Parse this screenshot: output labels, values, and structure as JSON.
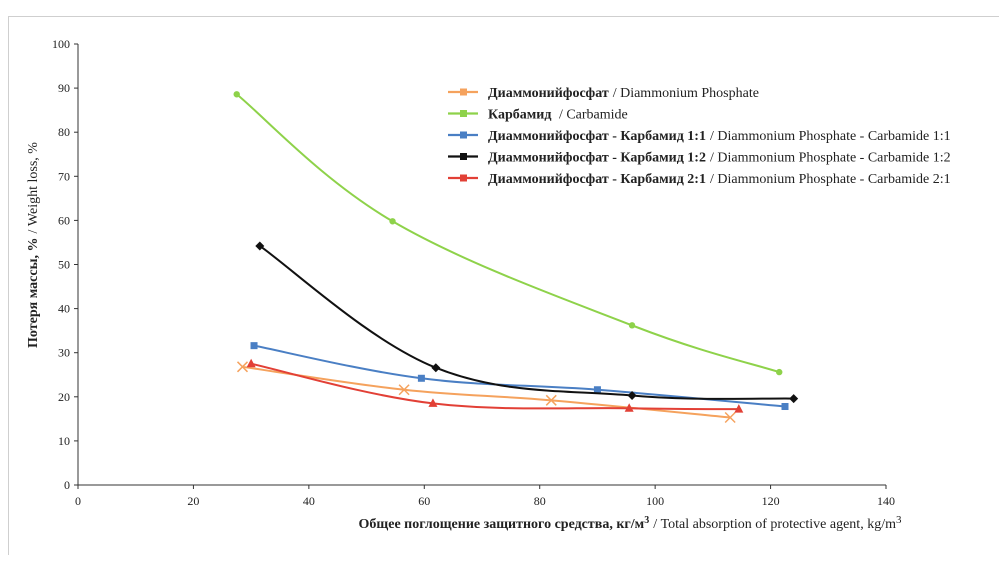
{
  "chart_data": {
    "type": "line",
    "xlabel_ru": "Общее поглощение защитного средства, кг/м",
    "xlabel_ru_sup": "3",
    "xlabel_en": "/ Total absorption of protective agent, kg/m",
    "xlabel_en_sup": "3",
    "ylabel_ru": "Потеря массы, %",
    "ylabel_en": "/ Weight loss, %",
    "xlim": [
      0,
      140
    ],
    "ylim": [
      0,
      100
    ],
    "xticks": [
      "0",
      "20",
      "40",
      "60",
      "80",
      "100",
      "120",
      "140"
    ],
    "yticks": [
      "0",
      "10",
      "20",
      "30",
      "40",
      "50",
      "60",
      "70",
      "80",
      "90",
      "100"
    ],
    "grid": false,
    "legend_position": "top-right",
    "series": [
      {
        "name_ru": "Диаммонийфосфат",
        "name_en": "/ Diammonium Phosphate",
        "color": "#f5a25d",
        "marker": "x",
        "x": [
          28.5,
          56.5,
          82,
          113
        ],
        "y": [
          26.8,
          21.6,
          19.2,
          15.3
        ]
      },
      {
        "name_ru": "Карбамид",
        "name_en": " / Carbamide",
        "color": "#8ed24a",
        "marker": "circle",
        "x": [
          27.5,
          54.5,
          96,
          121.5
        ],
        "y": [
          88.6,
          59.8,
          36.2,
          25.6
        ]
      },
      {
        "name_ru": "Диаммонийфосфат - Карбамид 1:1",
        "name_en": "/ Diammonium Phosphate - Carbamide 1:1",
        "color": "#4a7fc4",
        "marker": "square",
        "x": [
          30.5,
          59.5,
          90,
          122.5
        ],
        "y": [
          31.6,
          24.2,
          21.6,
          17.8
        ]
      },
      {
        "name_ru": "Диаммонийфосфат - Карбамид 1:2",
        "name_en": "/ Diammonium Phosphate - Carbamide 1:2",
        "color": "#111111",
        "marker": "diamond",
        "x": [
          31.5,
          62,
          96,
          124
        ],
        "y": [
          54.2,
          26.6,
          20.3,
          19.6
        ]
      },
      {
        "name_ru": "Диаммонийфосфат - Карбамид 2:1",
        "name_en": "/ Diammonium Phosphate - Carbamide 2:1",
        "color": "#e24036",
        "marker": "triangle",
        "x": [
          30,
          61.5,
          95.5,
          114.5
        ],
        "y": [
          27.5,
          18.5,
          17.4,
          17.2
        ]
      }
    ]
  }
}
